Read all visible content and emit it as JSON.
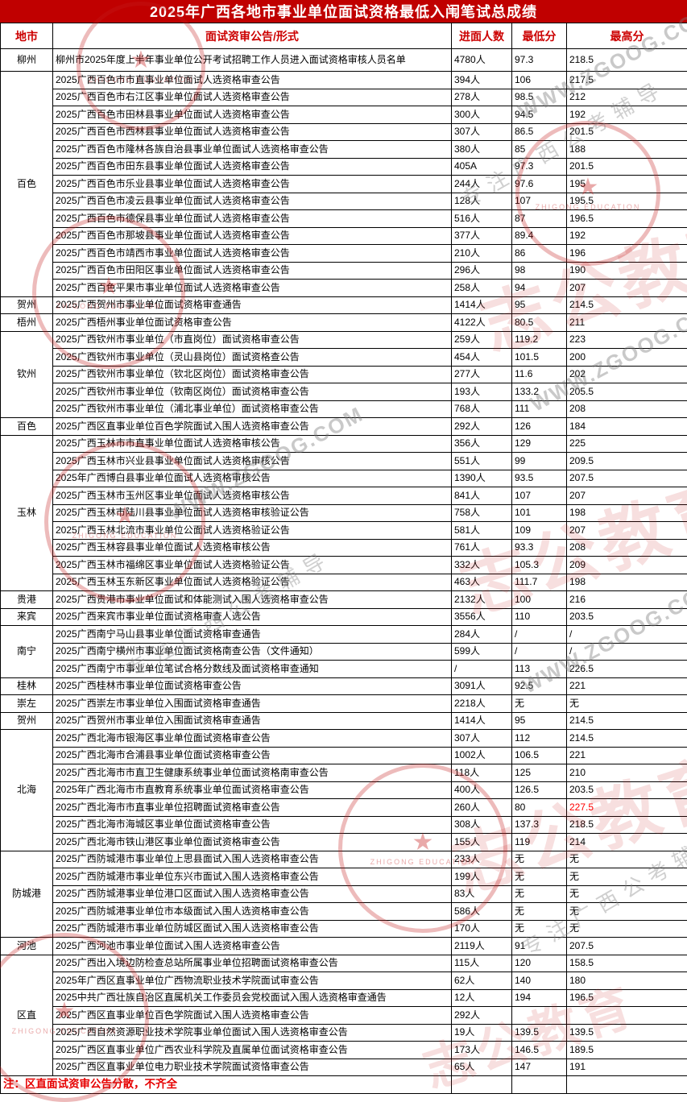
{
  "title": "2025年广西各地市事业单位面试资格最低入闱笔试总成绩",
  "note": "注：区直面试资审公告分散，不齐全",
  "colors": {
    "title_bg": "#c00000",
    "header_text": "#cc0000",
    "highlight_red": "#ff0000",
    "note_red": "#e60000"
  },
  "watermarks": {
    "stamp_label": "ZHIGONG EDUCATION",
    "brand": "志公教育",
    "url": "WWW.ZGOOG.COM",
    "slogan": "专注广西公考辅导"
  },
  "table": {
    "columns": [
      "地市",
      "面试资审公告/形式",
      "进面人数",
      "最低分",
      "最高分"
    ],
    "sections": [
      {
        "city": "柳州",
        "rows": [
          {
            "n": "柳州市2025年度上半年事业单位公开考试招聘工作人员进入面试资格审核人员名单",
            "c": "4780人",
            "lo": "97.3",
            "hi": "218.5"
          }
        ]
      },
      {
        "city": "百色",
        "rows": [
          {
            "n": "2025广西百色市市直事业单位面试人选资格审查公告",
            "c": "394人",
            "lo": "106",
            "hi": "217.5"
          },
          {
            "n": "2025广西百色市右江区事业单位面试人选资格审查公告",
            "c": "278人",
            "lo": "98.5",
            "hi": "212"
          },
          {
            "n": "2025广西百色市田林县事业单位面试人选资格审查公告",
            "c": "300人",
            "lo": "94.5",
            "hi": "192"
          },
          {
            "n": "2025广西百色市西林县事业单位面试人选资格审查公告",
            "c": "307人",
            "lo": "86.5",
            "hi": "201.5"
          },
          {
            "n": "2025广西百色市隆林各族自治县事业单位面试人选资格审查公告",
            "c": "380人",
            "lo": "85",
            "hi": "188"
          },
          {
            "n": "2025广西百色市田东县事业单位面试人选资格审查公告",
            "c": "405A",
            "lo": "97.3",
            "hi": "201.5"
          },
          {
            "n": "2025广西百色市乐业县事业单位面试人选资格审查公告",
            "c": "244人",
            "lo": "97.6",
            "hi": "195"
          },
          {
            "n": "2025广西百色市凌云县事业单位面试人选资格审查公告",
            "c": "128人",
            "lo": "107",
            "hi": "195.5"
          },
          {
            "n": "2025广西百色市德保县事业单位面试人选资格审查公告",
            "c": "516人",
            "lo": "87",
            "hi": "196.5"
          },
          {
            "n": "2025广西百色市那坡县事业单位面试人选资格审查公告",
            "c": "377人",
            "lo": "89.4",
            "hi": "192"
          },
          {
            "n": "2025广西百色市靖西市事业单位面试人选资格审查公告",
            "c": "210人",
            "lo": "86",
            "hi": "196"
          },
          {
            "n": "2025广西百色市田阳区事业单位面试人选资格审查公告",
            "c": "296人",
            "lo": "98",
            "hi": "190"
          },
          {
            "n": "2025广西百色平果市事业单位面试人选资格审查公告",
            "c": "258人",
            "lo": "94",
            "hi": "207"
          }
        ]
      },
      {
        "city": "贺州",
        "rows": [
          {
            "n": "2025广西贺州市事业单位面试资格审查通告",
            "c": "1414人",
            "lo": "95",
            "hi": "214.5"
          }
        ]
      },
      {
        "city": "梧州",
        "rows": [
          {
            "n": "2025广西梧州事业单位面试资格审查公告",
            "c": "4122人",
            "lo": "80.5",
            "hi": "211"
          }
        ]
      },
      {
        "city": "钦州",
        "rows": [
          {
            "n": "2025广西钦州市事业单位（市直岗位）面试资格审查公告",
            "c": "259人",
            "lo": "119.2",
            "hi": "223"
          },
          {
            "n": "2025广西钦州市事业单位（灵山县岗位）面试资格查公告",
            "c": "454人",
            "lo": "101.5",
            "hi": "200"
          },
          {
            "n": "2025广西钦州市事业单位（钦北区岗位）面试资格审查公告",
            "c": "277人",
            "lo": "11.6",
            "hi": "202"
          },
          {
            "n": "2025广西钦州市事业单位（钦南区岗位）面试资格审查公告",
            "c": "193人",
            "lo": "133.2",
            "hi": "205.5"
          },
          {
            "n": "2025广西钦州市事业单位（浦北事业单位）面试资格审查公告",
            "c": "768人",
            "lo": "111",
            "hi": "208"
          }
        ]
      },
      {
        "city": "百色",
        "rows": [
          {
            "n": "2025广西区直事业单位百色学院面试入围人选资格审查公告",
            "c": "292人",
            "lo": "126",
            "hi": "184"
          }
        ]
      },
      {
        "city": "玉林",
        "rows": [
          {
            "n": "2025广西玉林市市直事业单位面试人选资格审核公告",
            "c": "356人",
            "lo": "129",
            "hi": "225"
          },
          {
            "n": "2025广西玉林市兴业县事业单位面试人选资格审核公告",
            "c": "551人",
            "lo": "99",
            "hi": "209.5"
          },
          {
            "n": "2025年广西博白县事业单位面试人选资格审核公告",
            "c": "1390人",
            "lo": "93.5",
            "hi": "207.5"
          },
          {
            "n": "2025广西玉林市玉州区事业单位面试人选资格审核公告",
            "c": "841人",
            "lo": "107",
            "hi": "207"
          },
          {
            "n": "2025广西玉林市陆川县事业单位面试人选资格审核验证公告",
            "c": "758人",
            "lo": "101",
            "hi": "198"
          },
          {
            "n": "2025广西玉林北流市事业单位公面试人选资格验证公告",
            "c": "581人",
            "lo": "109",
            "hi": "207"
          },
          {
            "n": "2025广西玉林容县事业单位面试人选资格审核公告",
            "c": "761人",
            "lo": "93.3",
            "hi": "208"
          },
          {
            "n": "2025广西玉林市福绵区事业单位面试人选资格验证公告",
            "c": "332人",
            "lo": "105.3",
            "hi": "209"
          },
          {
            "n": "2025广西玉林玉东新区事业单位面试人选资格验证公告",
            "c": "463人",
            "lo": "111.7",
            "hi": "198"
          }
        ]
      },
      {
        "city": "贵港",
        "rows": [
          {
            "n": "2025广西贵港市事业单位面试和体能测试入围人选资格审查公告",
            "c": "2132人",
            "lo": "100",
            "hi": "216"
          }
        ]
      },
      {
        "city": "来宾",
        "rows": [
          {
            "n": "2025广西来宾市事业单位面试资格审查人选公告",
            "c": "3556人",
            "lo": "110",
            "hi": "203.5"
          }
        ]
      },
      {
        "city": "南宁",
        "rows": [
          {
            "n": "2025广西南宁马山县事业单位面试资格审查通告",
            "c": "284人",
            "lo": "/",
            "hi": "/"
          },
          {
            "n": "2025广西南宁横州市事业单位面试资格南查公告（文件通知）",
            "c": "599人",
            "lo": "/",
            "hi": "/"
          },
          {
            "n": "2025广西南宁市事业单位笔试合格分数线及面试资格审查通知",
            "c": "/",
            "lo": "113",
            "hi": "226.5"
          }
        ]
      },
      {
        "city": "桂林",
        "rows": [
          {
            "n": "2025广西桂林市事业单位面试资格审查公告",
            "c": "3091人",
            "lo": "92.5",
            "hi": "221"
          }
        ]
      },
      {
        "city": "崇左",
        "rows": [
          {
            "n": "2025广西崇左市事业单位入围面试资格审查通告",
            "c": "2218人",
            "lo": "无",
            "hi": "无"
          }
        ]
      },
      {
        "city": "贺州",
        "rows": [
          {
            "n": "2025广西贺州市事业单位入围面试资格审查通告",
            "c": "1414人",
            "lo": "95",
            "hi": "214.5"
          }
        ]
      },
      {
        "city": "北海",
        "rows": [
          {
            "n": "2025广西北海市银海区事业单位面试资格审查公告",
            "c": "307人",
            "lo": "112",
            "hi": "214.5"
          },
          {
            "n": "2025广西北海市合浦县事业单位面试资格审查公告",
            "c": "1002人",
            "lo": "106.5",
            "hi": "221"
          },
          {
            "n": "2025广西北海市市直卫生健康系统事业单位面试资格南审查公告",
            "c": "118人",
            "lo": "125",
            "hi": "210"
          },
          {
            "n": "2025年广西北海市市直教育系统事业单位面试资格审查公告",
            "c": "400人",
            "lo": "126.5",
            "hi": "203.5"
          },
          {
            "n": "2025广西北海市市直事业单位招聘面试资格审查公告",
            "c": "260人",
            "lo": "80",
            "hi": "227.5",
            "hiRed": true
          },
          {
            "n": "2025广西北海市海城区事业单位面试资格审查公告",
            "c": "308人",
            "lo": "137.3",
            "hi": "218.5"
          },
          {
            "n": "2025广西北海市铁山港区事业单位面试资格审查公告",
            "c": "155人",
            "lo": "119",
            "hi": "214"
          }
        ]
      },
      {
        "city": "防城港",
        "rows": [
          {
            "n": "2025广西防城港市事业单位上思县面试入围人选资格审查公告",
            "c": "233人",
            "lo": "无",
            "hi": "无"
          },
          {
            "n": "2025广西防城港市事业单位东兴市面试入围人选资格审查公告",
            "c": "199人",
            "lo": "无",
            "hi": "无"
          },
          {
            "n": "2025广西防城港事业单位港口区面试入围人选资格审查公告",
            "c": "83人",
            "lo": "无",
            "hi": "无"
          },
          {
            "n": "2025广西防城港事业单位市本级面试入围人选资格审查公告",
            "c": "586人",
            "lo": "无",
            "hi": "无"
          },
          {
            "n": "2025广西防城港市事业单位防城区面试入围人选资格审查公告",
            "c": "170人",
            "lo": "无",
            "hi": "无"
          }
        ]
      },
      {
        "city": "河池",
        "rows": [
          {
            "n": "2025广西河池市事业单位面试入围人选资格审查公告",
            "c": "2119人",
            "lo": "91",
            "hi": "207.5"
          }
        ]
      },
      {
        "city": "区直",
        "rows": [
          {
            "n": "2025广西出入境边防检查总站所属事业单位招聘面试资格审查公告",
            "c": "115人",
            "lo": "120",
            "hi": "158.5"
          },
          {
            "n": "2025年广西区直事业单位广西物流职业技术学院面试审查公告",
            "c": "62人",
            "lo": "140",
            "hi": "180"
          },
          {
            "n": "2025中共广西壮族自治区直属机关工作委员会党校面试入围人选资格审查通告",
            "c": "12人",
            "lo": "194",
            "hi": "196.5"
          },
          {
            "n": "2025广西区直事业单位百色学院面试入围人选资格审查公告",
            "c": "292人",
            "lo": "",
            "hi": ""
          },
          {
            "n": "2025广西自然资源职业技术学院事业单位面试入围人选资格审查公告",
            "c": "19人",
            "lo": "139.5",
            "hi": "139.5"
          },
          {
            "n": "2025广西区直事业单位广西农业科学院及直属单位面试资格审查公告",
            "c": "173人",
            "lo": "146.5",
            "hi": "189.5"
          },
          {
            "n": "2025广西区直事业单位电力职业技术学院面试资恪审查公告",
            "c": "65人",
            "lo": "147",
            "hi": "191"
          }
        ]
      }
    ]
  }
}
